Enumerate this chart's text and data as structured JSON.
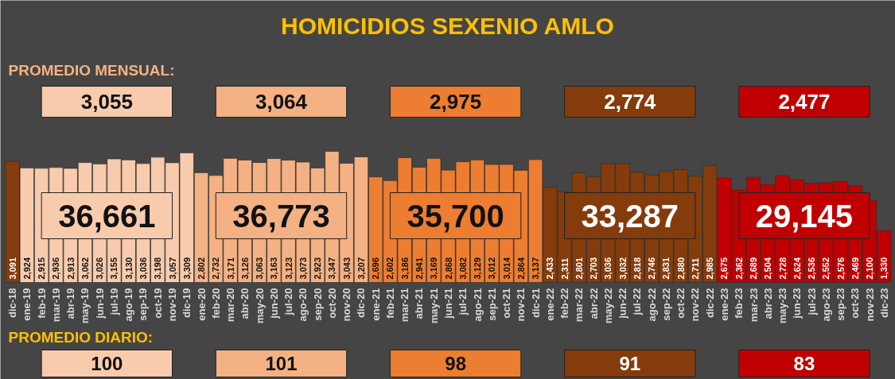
{
  "chart_data": {
    "type": "bar",
    "title": "HOMICIDIOS SEXENIO AMLO",
    "categories": [
      "dic-18",
      "ene-19",
      "feb-19",
      "mar-19",
      "abr-19",
      "may-19",
      "jun-19",
      "jul-19",
      "ago-19",
      "sep-19",
      "oct-19",
      "nov-19",
      "dic-19",
      "ene-20",
      "feb-20",
      "mar-20",
      "abr-20",
      "may-20",
      "jun-20",
      "jul-20",
      "ago-20",
      "sep-20",
      "oct-20",
      "nov-20",
      "dic-20",
      "ene-21",
      "feb-21",
      "mar-21",
      "abr-21",
      "may-21",
      "jun-21",
      "jul-21",
      "ago-21",
      "sep-21",
      "oct-21",
      "nov-21",
      "dic-21",
      "ene-22",
      "feb-22",
      "mar-22",
      "abr-22",
      "may-22",
      "jun-22",
      "jul-22",
      "ago-22",
      "sep-22",
      "oct-22",
      "nov-22",
      "dic-22",
      "ene-23",
      "feb-23",
      "mar-23",
      "abr-23",
      "may-23",
      "jun-23",
      "jul-23",
      "ago-23",
      "sep-23",
      "oct-23",
      "nov-23",
      "dic-23"
    ],
    "values": [
      3091,
      2924,
      2915,
      2936,
      2913,
      3062,
      3026,
      3155,
      3130,
      3036,
      3198,
      3057,
      3309,
      2802,
      2732,
      3171,
      3126,
      3063,
      3163,
      3123,
      3073,
      2923,
      3347,
      3043,
      3207,
      2696,
      2602,
      3186,
      2941,
      3169,
      2868,
      3082,
      3129,
      3012,
      3014,
      2864,
      3137,
      2433,
      2311,
      2801,
      2703,
      3036,
      3032,
      2818,
      2746,
      2831,
      2880,
      2711,
      2985,
      2675,
      2362,
      2689,
      2504,
      2728,
      2624,
      2536,
      2552,
      2576,
      2469,
      2100,
      1330
    ],
    "value_labels": [
      "3,091",
      "2,924",
      "2,915",
      "2,936",
      "2,913",
      "3,062",
      "3,026",
      "3,155",
      "3,130",
      "3,036",
      "3,198",
      "3,057",
      "3,309",
      "2,802",
      "2,732",
      "3,171",
      "3,126",
      "3,063",
      "3,163",
      "3,123",
      "3,073",
      "2,923",
      "3,347",
      "3,043",
      "3,207",
      "2,696",
      "2,602",
      "3,186",
      "2,941",
      "3,169",
      "2,868",
      "3,082",
      "3,129",
      "3,012",
      "3,014",
      "2,864",
      "3,137",
      "2,433",
      "2,311",
      "2,801",
      "2,703",
      "3,036",
      "3,032",
      "2,818",
      "2,746",
      "2,831",
      "2,880",
      "2,711",
      "2,985",
      "2,675",
      "2,362",
      "2,689",
      "2,504",
      "2,728",
      "2,624",
      "2,536",
      "2,552",
      "2,576",
      "2,469",
      "2,100",
      "1,330"
    ],
    "colors": [
      "#843c0c",
      "#f8cbad",
      "#f8cbad",
      "#f8cbad",
      "#f8cbad",
      "#f8cbad",
      "#f8cbad",
      "#f8cbad",
      "#f8cbad",
      "#f8cbad",
      "#f8cbad",
      "#f8cbad",
      "#f8cbad",
      "#f4b183",
      "#f4b183",
      "#f4b183",
      "#f4b183",
      "#f4b183",
      "#f4b183",
      "#f4b183",
      "#f4b183",
      "#f4b183",
      "#f4b183",
      "#f4b183",
      "#f4b183",
      "#ed7d31",
      "#ed7d31",
      "#ed7d31",
      "#ed7d31",
      "#ed7d31",
      "#ed7d31",
      "#ed7d31",
      "#ed7d31",
      "#ed7d31",
      "#ed7d31",
      "#ed7d31",
      "#ed7d31",
      "#843c0c",
      "#843c0c",
      "#843c0c",
      "#843c0c",
      "#843c0c",
      "#843c0c",
      "#843c0c",
      "#843c0c",
      "#843c0c",
      "#843c0c",
      "#843c0c",
      "#843c0c",
      "#c00000",
      "#c00000",
      "#c00000",
      "#c00000",
      "#c00000",
      "#c00000",
      "#c00000",
      "#c00000",
      "#c00000",
      "#c00000",
      "#c00000",
      "#c00000"
    ],
    "tick_labels": "x",
    "annotations": [
      "PROMEDIO MENSUAL:",
      "3,055",
      "3,064",
      "2,975",
      "2,774",
      "2,477",
      "36,661",
      "36,773",
      "35,700",
      "33,287",
      "29,145",
      "PROMEDIO DIARIO:",
      "100",
      "101",
      "98",
      "91",
      "83"
    ]
  }
}
